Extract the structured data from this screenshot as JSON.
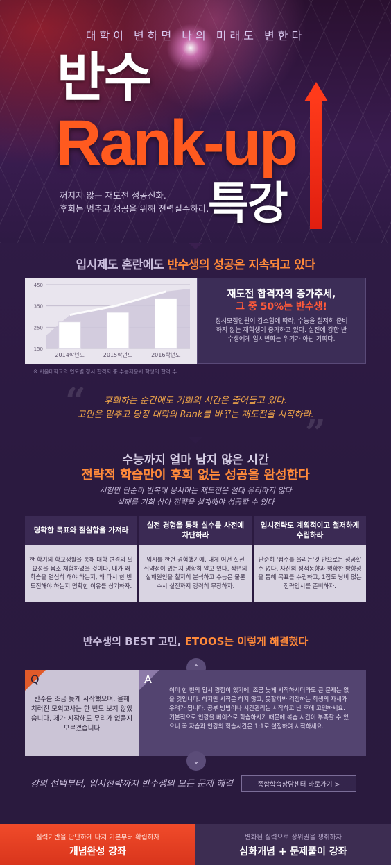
{
  "hero": {
    "tagline": "대학이 변하면 나의 미래도 변한다",
    "title_line1": "반수",
    "title_line2": "Rank-up",
    "title_line3": "특강",
    "subtitle_line1": "꺼지지 않는 재도전 성공신화.",
    "subtitle_line2": "후회는 멈추고 성공을 위해 전력질주하라."
  },
  "section_trend": {
    "heading_prefix": "입시제도 혼란에도 ",
    "heading_highlight": "반수생의 성공은 지속되고 있다",
    "stat_title": "재도전 합격자의 증가추세,",
    "stat_highlight": "그 중 50%는 반수생!",
    "stat_body": "정시모집인원이 감소함에 따라, 수능을 철저히 준비하지 않는 재학생이 증가하고 있다. 실전에 강한 반수생에게 입시변화는 위기가 아닌 기회다.",
    "footnote": "※ 서울대학교의 연도별 정시 합격자 중 수능재응시 학생의 합격 수"
  },
  "chart_data": {
    "type": "area",
    "categories": [
      "2014학년도",
      "2015학년도",
      "2016학년도"
    ],
    "values": [
      275,
      320,
      385
    ],
    "ylim": [
      150,
      450
    ],
    "yticks": [
      150,
      250,
      350,
      450
    ],
    "title": "",
    "xlabel": "",
    "ylabel": ""
  },
  "quote": {
    "line1": "후회하는 순간에도 기회의 시간은 줄어들고 있다.",
    "line2": "고민은 멈추고 당장 대학의 Rank를 바꾸는 재도전을 시작하라."
  },
  "section_strategy": {
    "heading1": "수능까지 얼마 남지 않은 시간",
    "heading2": "전략적 학습만이 후회 없는 성공을 완성한다",
    "sub_line1": "시험만 단순히 반복해 응시하는 재도전은 절대 유리하지 않다",
    "sub_line2": "실패를 기회 삼아 전략을 설계해야 성공할 수 있다",
    "columns": [
      {
        "head": "명확한 목표와 절실함을 가져라",
        "body": "한 학기의 학교생활을 통해 대학 변경의 필요성을 몸소 체험하였을 것이다. 내가 왜 학습을 열심히 해야 하는지, 왜 다시 한 번 도전해야 하는지 명확한 이유를 상기하자."
      },
      {
        "head": "실전 경험을 통해 실수를 사전에 차단하라",
        "body": "입시를 한번 경험했기에, 내게 어떤 실전 취약점이 있는지 명확히 알고 있다. 작년의 실패원인을 철저히 분석하고 수능은 물론 수시 실전까지 강력히 무장하자."
      },
      {
        "head": "입시전략도 계획적이고 철저하게 수립하라",
        "body": "단순히 '점수를 올리는'것 만으로는 성공할 수 없다. 자신의 성적동향과 명확한 방향성을 통해 목표를 수립하고, 1점도 낭비 없는 전략입시를 준비하자."
      }
    ]
  },
  "section_qa": {
    "heading_prefix": "반수생의 BEST 고민, ",
    "heading_highlight": "ETOOS는 이렇게 해결했다",
    "q_letter": "Q",
    "a_letter": "A",
    "question": "반수를 조금 늦게 시작했으며, 올해 치러진 모의고사는 한 번도 보지 않았습니다. 제가 시작해도 무리가 없을지 모르겠습니다",
    "answer": "이미 한 번의 입시 경험이 있기에, 조금 늦게 시작하시더라도 큰 문제는 없을 것입니다. 하지만 시작은 하지 않고, 못할까봐 걱정하는 학생의 자세가 우려가 됩니다. 공부 방법이나 시간관리는 시작하고 난 후에 고민하세요. 기본적으로 인강을 베이스로 학습하시기 때문에 복습 시간이 부족할 수 있으니 꼭 자습과 인강의 학습시간은 1:1로 설정하여 시작하세요.",
    "up_glyph": "⌃",
    "down_glyph": "⌄"
  },
  "footer": {
    "tagline": "강의 선택부터, 입시전략까지 반수생의 모든 문제 해결",
    "consult_button": "종합학습상담센터 바로가기 >"
  },
  "tabs": [
    {
      "sub": "실력기반을 단단하게 다져 기본부터 확립하자",
      "main": "개념완성 강좌"
    },
    {
      "sub": "변화된 실력으로 상위권을 쟁취하자",
      "main": "심화개념 + 문제풀이 강좌"
    }
  ],
  "colors": {
    "accent_orange": "#ff5a1f",
    "accent_red": "#ff3a1a",
    "highlight_text": "#ff8a3a",
    "background": "#2a1a3e"
  }
}
